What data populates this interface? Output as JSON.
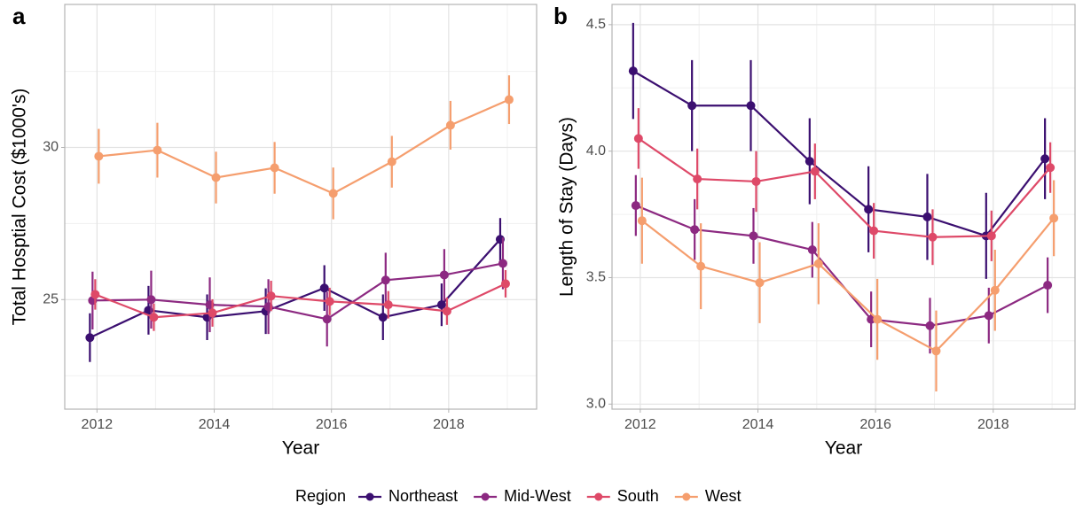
{
  "chart_data": [
    {
      "type": "line",
      "panel_label": "a",
      "xlabel": "Year",
      "ylabel": "Total Hosptial Cost ($1000's)",
      "legend_title": "Region",
      "x": [
        2012,
        2013,
        2014,
        2015,
        2016,
        2017,
        2018,
        2019
      ],
      "xlim": [
        2011.45,
        2019.5
      ],
      "xticks": [
        2012,
        2014,
        2016,
        2018
      ],
      "ylim": [
        21.4,
        34.7
      ],
      "yticks": [
        25,
        30
      ],
      "grid": true,
      "series": [
        {
          "name": "Northeast",
          "color": "#3b0f70",
          "values": [
            23.75,
            24.65,
            24.42,
            24.62,
            25.38,
            24.42,
            24.83,
            26.98
          ],
          "errors": [
            0.8,
            0.8,
            0.75,
            0.75,
            0.75,
            0.75,
            0.7,
            0.7
          ]
        },
        {
          "name": "Mid-West",
          "color": "#8c2981",
          "values": [
            24.97,
            25.0,
            24.83,
            24.77,
            24.36,
            25.64,
            25.81,
            26.19
          ],
          "errors": [
            0.95,
            0.95,
            0.9,
            0.9,
            0.9,
            0.9,
            0.85,
            0.85
          ]
        },
        {
          "name": "South",
          "color": "#de4968",
          "values": [
            25.17,
            24.42,
            24.56,
            25.12,
            24.94,
            24.83,
            24.62,
            25.52
          ],
          "errors": [
            0.5,
            0.45,
            0.45,
            0.5,
            0.45,
            0.45,
            0.45,
            0.45
          ]
        },
        {
          "name": "West",
          "color": "#f59e6e",
          "values": [
            29.71,
            29.91,
            29.01,
            29.33,
            28.49,
            29.53,
            30.73,
            31.57
          ],
          "errors": [
            0.9,
            0.9,
            0.85,
            0.85,
            0.85,
            0.85,
            0.8,
            0.8
          ]
        }
      ]
    },
    {
      "type": "line",
      "panel_label": "b",
      "xlabel": "Year",
      "ylabel": "Length of Stay (Days)",
      "x": [
        2012,
        2013,
        2014,
        2015,
        2016,
        2017,
        2018,
        2019
      ],
      "xlim": [
        2011.52,
        2019.39
      ],
      "xticks": [
        2012,
        2014,
        2016,
        2018
      ],
      "ylim": [
        2.98,
        4.58
      ],
      "yticks": [
        {
          "value": 3.0,
          "label": "3.0"
        },
        {
          "value": 3.5,
          "label": "3.5"
        },
        {
          "value": 4.0,
          "label": "4.0"
        },
        {
          "value": 4.5,
          "label": "4.5"
        }
      ],
      "grid": true,
      "series": [
        {
          "name": "Northeast",
          "color": "#3b0f70",
          "values": [
            4.317,
            4.18,
            4.18,
            3.96,
            3.77,
            3.74,
            3.665,
            3.97
          ],
          "errors": [
            0.19,
            0.18,
            0.18,
            0.17,
            0.17,
            0.17,
            0.17,
            0.16
          ]
        },
        {
          "name": "Mid-West",
          "color": "#8c2981",
          "values": [
            3.785,
            3.69,
            3.665,
            3.61,
            3.335,
            3.31,
            3.35,
            3.47
          ],
          "errors": [
            0.12,
            0.12,
            0.11,
            0.11,
            0.11,
            0.11,
            0.11,
            0.11
          ]
        },
        {
          "name": "South",
          "color": "#de4968",
          "values": [
            4.05,
            3.89,
            3.88,
            3.92,
            3.685,
            3.66,
            3.665,
            3.935
          ],
          "errors": [
            0.12,
            0.12,
            0.12,
            0.11,
            0.11,
            0.11,
            0.1,
            0.1
          ]
        },
        {
          "name": "West",
          "color": "#f59e6e",
          "values": [
            3.725,
            3.545,
            3.48,
            3.555,
            3.335,
            3.21,
            3.45,
            3.735
          ],
          "errors": [
            0.17,
            0.17,
            0.16,
            0.16,
            0.16,
            0.16,
            0.16,
            0.15
          ]
        }
      ]
    }
  ]
}
